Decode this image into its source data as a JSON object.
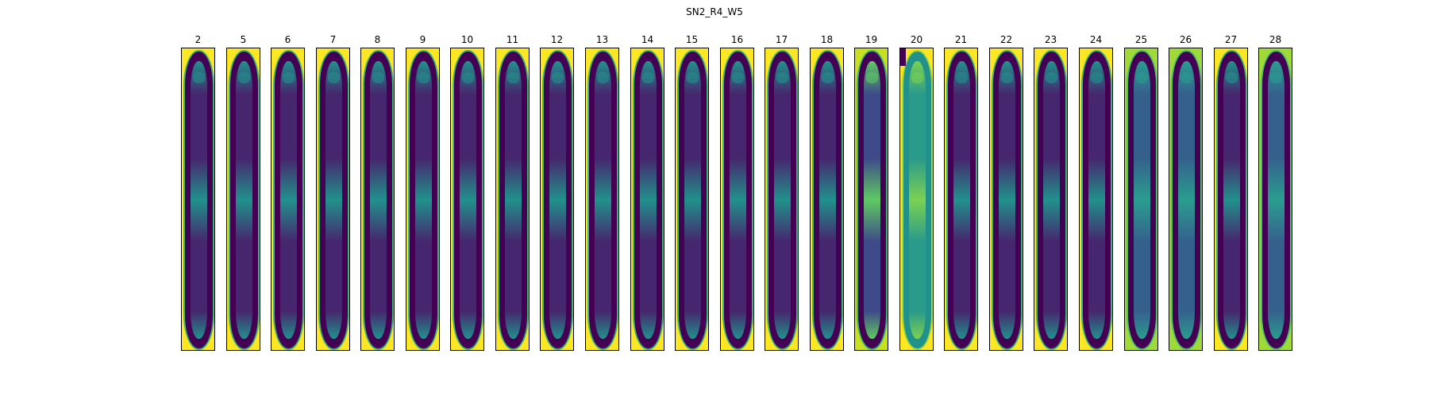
{
  "figure": {
    "title": "SN2_R4_W5"
  },
  "colors": {
    "background_high": "#fde725",
    "mid_green": "#35b779",
    "teal": "#21918c",
    "blue": "#3b528b",
    "dark_purple": "#440154",
    "cell_fill": "#46266e"
  },
  "panels": [
    {
      "label": "2",
      "style": "normal"
    },
    {
      "label": "5",
      "style": "normal"
    },
    {
      "label": "6",
      "style": "normal"
    },
    {
      "label": "7",
      "style": "normal"
    },
    {
      "label": "8",
      "style": "normal"
    },
    {
      "label": "9",
      "style": "normal"
    },
    {
      "label": "10",
      "style": "normal"
    },
    {
      "label": "11",
      "style": "normal"
    },
    {
      "label": "12",
      "style": "normal"
    },
    {
      "label": "13",
      "style": "normal"
    },
    {
      "label": "14",
      "style": "normal"
    },
    {
      "label": "15",
      "style": "normal"
    },
    {
      "label": "16",
      "style": "normal"
    },
    {
      "label": "17",
      "style": "normal"
    },
    {
      "label": "18",
      "style": "normal"
    },
    {
      "label": "19",
      "style": "bright"
    },
    {
      "label": "20",
      "style": "inverted"
    },
    {
      "label": "21",
      "style": "normal"
    },
    {
      "label": "22",
      "style": "normal"
    },
    {
      "label": "23",
      "style": "normal"
    },
    {
      "label": "24",
      "style": "normal"
    },
    {
      "label": "25",
      "style": "teal"
    },
    {
      "label": "26",
      "style": "teal"
    },
    {
      "label": "27",
      "style": "normal"
    },
    {
      "label": "28",
      "style": "teal"
    }
  ]
}
